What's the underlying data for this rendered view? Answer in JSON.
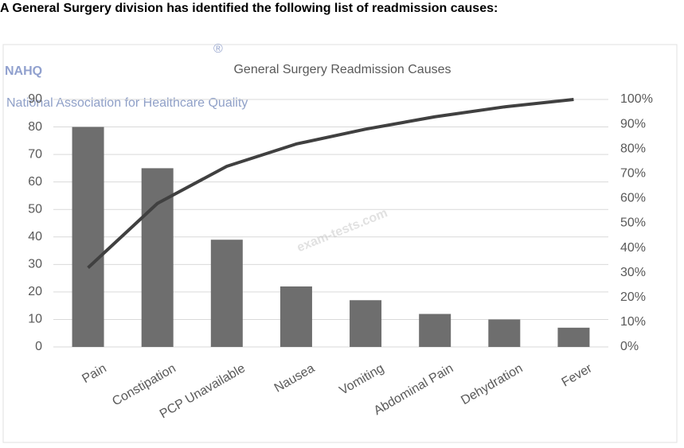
{
  "question": "A General Surgery division has identified the following list of readmission causes:",
  "logo": {
    "name": "NAHQ",
    "mark": "®",
    "tagline": "National Association for Healthcare Quality"
  },
  "watermark": "exam-tests.com",
  "chart_data": {
    "type": "pareto",
    "title": "General Surgery Readmission Causes",
    "categories": [
      "Pain",
      "Constipation",
      "PCP Unavailable",
      "Nausea",
      "Vomiting",
      "Abdominal Pain",
      "Dehydration",
      "Fever"
    ],
    "series": [
      {
        "type": "bar",
        "color": "#6e6e6e",
        "values": [
          80,
          65,
          39,
          22,
          17,
          12,
          10,
          7
        ]
      },
      {
        "type": "line",
        "color": "#404040",
        "axis": "y2",
        "values": [
          32,
          58,
          73,
          82,
          88,
          93,
          97,
          100
        ]
      }
    ],
    "ylim": [
      0,
      90
    ],
    "yticks": [
      0,
      10,
      20,
      30,
      40,
      50,
      60,
      70,
      80,
      90
    ],
    "y2lim": [
      0,
      100
    ],
    "y2ticks": [
      {
        "value": 0,
        "label": "0%"
      },
      {
        "value": 10,
        "label": "10%"
      },
      {
        "value": 20,
        "label": "20%"
      },
      {
        "value": 30,
        "label": "30%"
      },
      {
        "value": 40,
        "label": "40%"
      },
      {
        "value": 50,
        "label": "50%"
      },
      {
        "value": 60,
        "label": "60%"
      },
      {
        "value": 70,
        "label": "70%"
      },
      {
        "value": 80,
        "label": "80%"
      },
      {
        "value": 90,
        "label": "90%"
      },
      {
        "value": 100,
        "label": "100%"
      }
    ],
    "grid": true
  }
}
